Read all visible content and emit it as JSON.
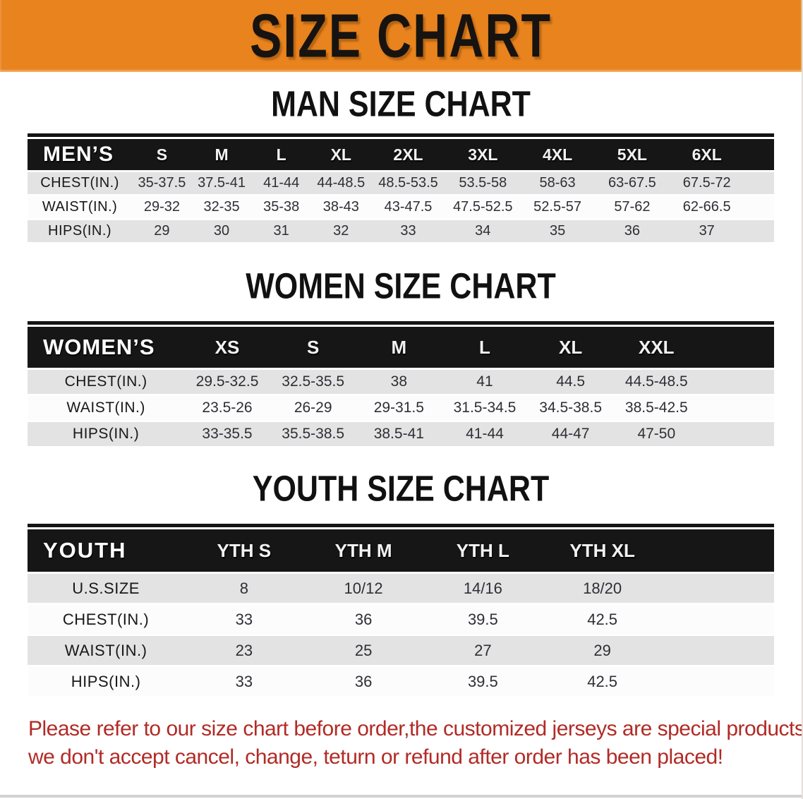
{
  "banner": {
    "title": "SIZE CHART",
    "bg_color": "#e8831e"
  },
  "colors": {
    "header_bar": "#161616",
    "row_gray": "#e3e3e3",
    "row_white": "#fcfcfc",
    "notice_red": "#b12b26"
  },
  "sections": [
    {
      "heading": "MAN SIZE CHART",
      "table": {
        "header_label": "MEN’S",
        "columns": [
          "S",
          "M",
          "L",
          "XL",
          "2XL",
          "3XL",
          "4XL",
          "5XL",
          "6XL"
        ],
        "rows": [
          {
            "label": "CHEST(IN.)",
            "values": [
              "35-37.5",
              "37.5-41",
              "41-44",
              "44-48.5",
              "48.5-53.5",
              "53.5-58",
              "58-63",
              "63-67.5",
              "67.5-72"
            ]
          },
          {
            "label": "WAIST(IN.)",
            "values": [
              "29-32",
              "32-35",
              "35-38",
              "38-43",
              "43-47.5",
              "47.5-52.5",
              "52.5-57",
              "57-62",
              "62-66.5"
            ]
          },
          {
            "label": "HIPS(IN.)",
            "values": [
              "29",
              "30",
              "31",
              "32",
              "33",
              "34",
              "35",
              "36",
              "37"
            ]
          }
        ]
      }
    },
    {
      "heading": "WOMEN SIZE CHART",
      "table": {
        "header_label": "WOMEN’S",
        "columns": [
          "XS",
          "S",
          "M",
          "L",
          "XL",
          "XXL"
        ],
        "rows": [
          {
            "label": "CHEST(IN.)",
            "values": [
              "29.5-32.5",
              "32.5-35.5",
              "38",
              "41",
              "44.5",
              "44.5-48.5"
            ]
          },
          {
            "label": "WAIST(IN.)",
            "values": [
              "23.5-26",
              "26-29",
              "29-31.5",
              "31.5-34.5",
              "34.5-38.5",
              "38.5-42.5"
            ]
          },
          {
            "label": "HIPS(IN.)",
            "values": [
              "33-35.5",
              "35.5-38.5",
              "38.5-41",
              "41-44",
              "44-47",
              "47-50"
            ]
          }
        ]
      }
    },
    {
      "heading": "YOUTH SIZE CHART",
      "table": {
        "header_label": "YOUTH",
        "columns": [
          "YTH S",
          "YTH M",
          "YTH L",
          "YTH XL"
        ],
        "rows": [
          {
            "label": "U.S.SIZE",
            "values": [
              "8",
              "10/12",
              "14/16",
              "18/20"
            ]
          },
          {
            "label": "CHEST(IN.)",
            "values": [
              "33",
              "36",
              "39.5",
              "42.5"
            ]
          },
          {
            "label": "WAIST(IN.)",
            "values": [
              "23",
              "25",
              "27",
              "29"
            ]
          },
          {
            "label": "HIPS(IN.)",
            "values": [
              "33",
              "36",
              "39.5",
              "42.5"
            ]
          }
        ]
      }
    }
  ],
  "footer": {
    "line1": "Please refer to our size chart before order,the customized jerseys are special products,",
    "line2": "we don't accept cancel, change, teturn or refund after order has been placed!"
  }
}
